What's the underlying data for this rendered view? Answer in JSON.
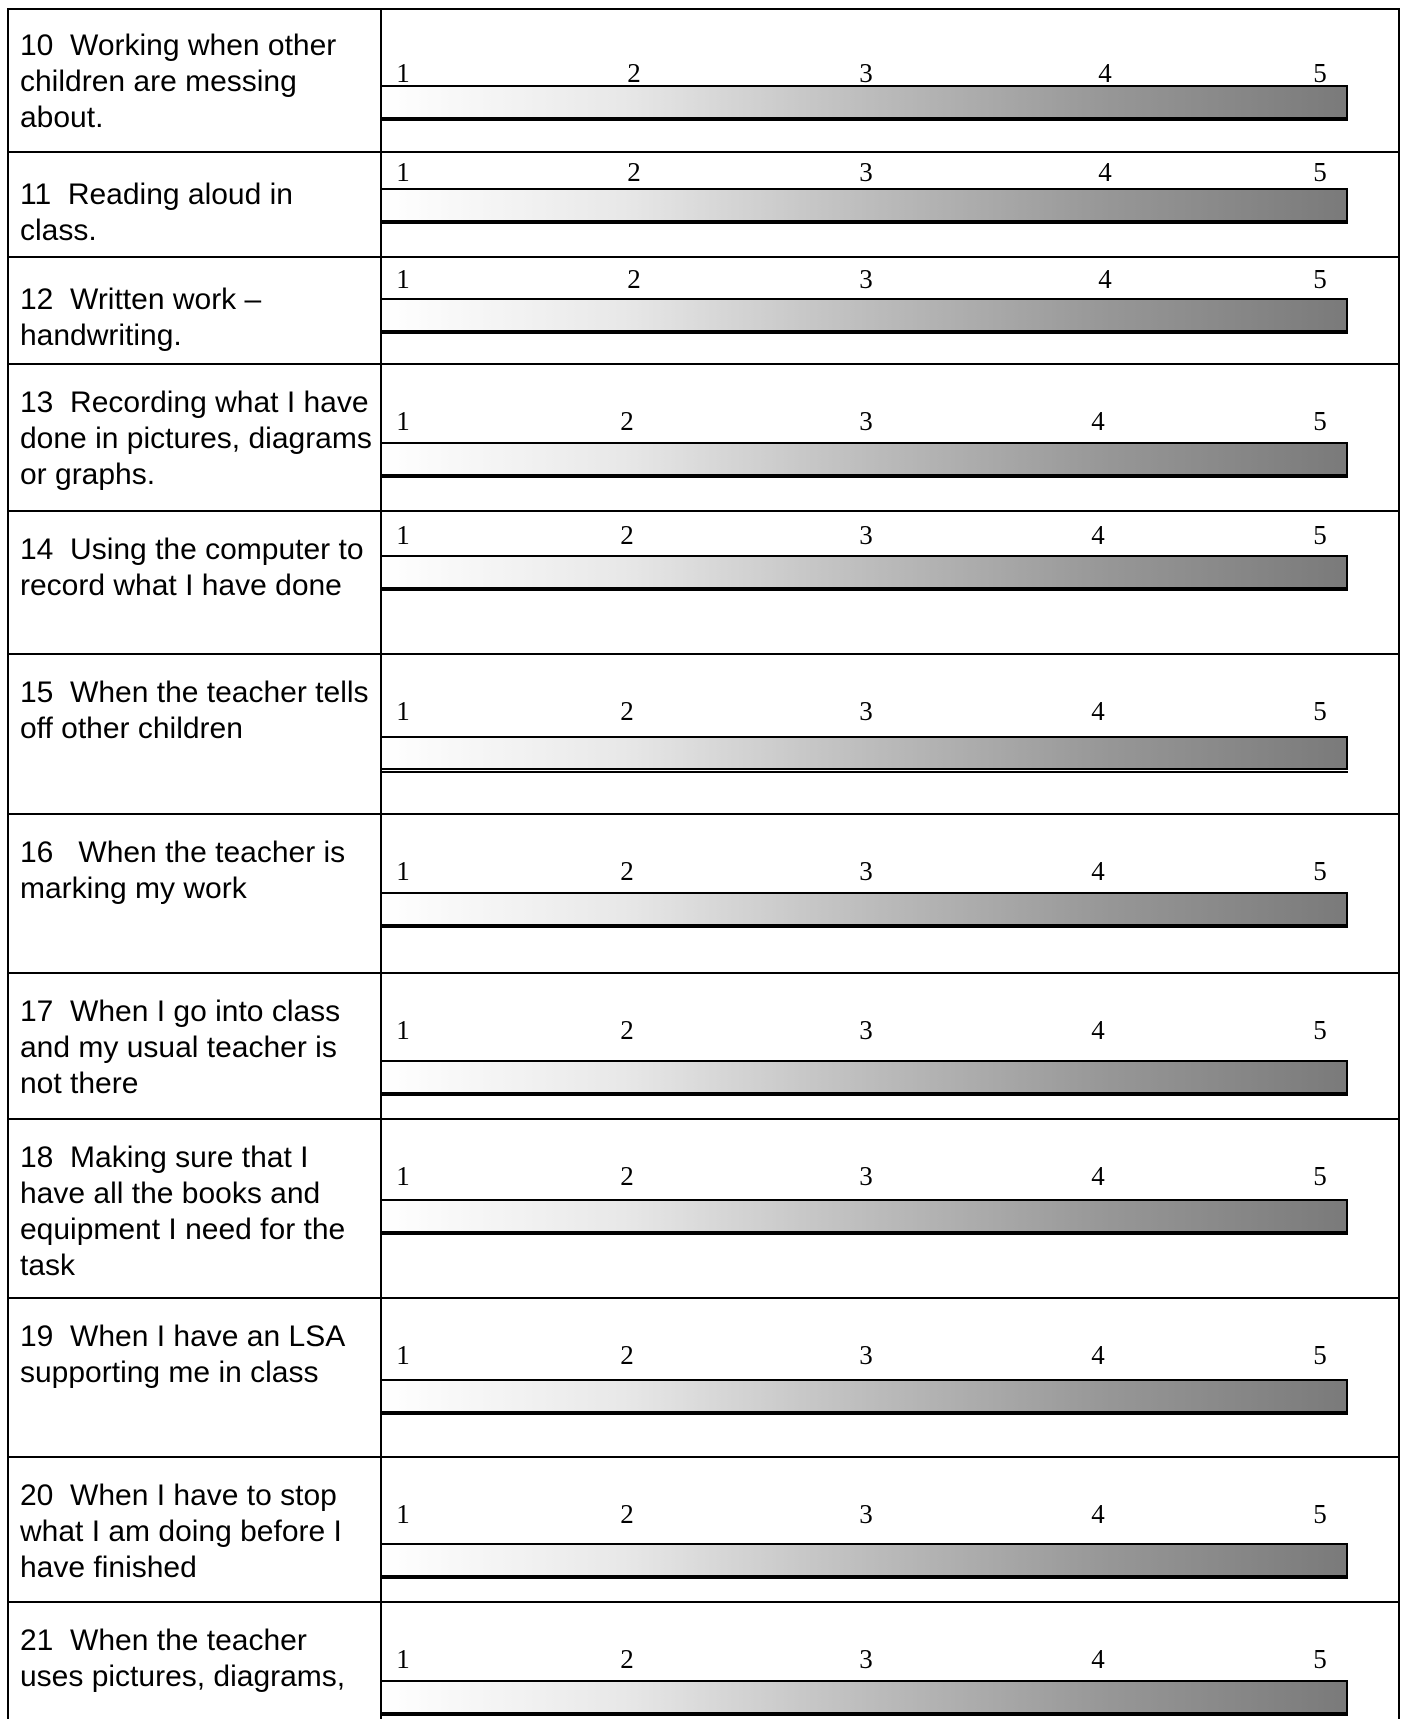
{
  "scale_labels": [
    "1",
    "2",
    "3",
    "4",
    "5"
  ],
  "items": [
    {
      "label": "10  Working when other children are messing about."
    },
    {
      "label": "11  Reading aloud in class."
    },
    {
      "label": "12  Written work – handwriting."
    },
    {
      "label": "13  Recording what I have done in pictures, diagrams or graphs."
    },
    {
      "label": "14  Using the computer to record what I have done"
    },
    {
      "label": "15  When the teacher tells off other children"
    },
    {
      "label": "16   When the teacher is marking my work"
    },
    {
      "label": "17  When I go into class and my usual teacher is not there"
    },
    {
      "label": "18  Making sure that I have all the books and equipment I need for the task"
    },
    {
      "label": "19  When I have an LSA supporting me in class"
    },
    {
      "label": "20  When I have to stop what I am doing before I have finished"
    },
    {
      "label": "21  When the teacher uses pictures, diagrams,"
    }
  ]
}
